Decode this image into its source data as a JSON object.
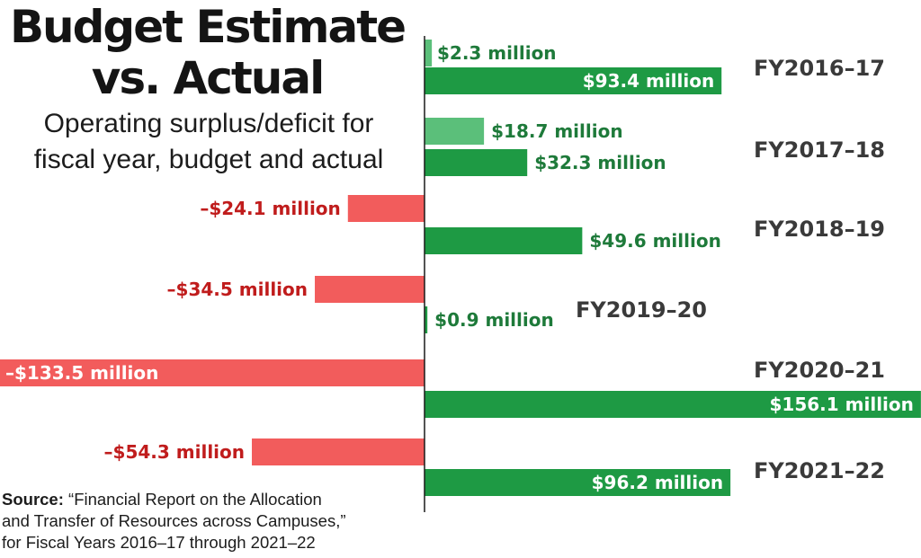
{
  "title_line1": "Budget Estimate",
  "title_line2": "vs. Actual",
  "subtitle_line1": "Operating surplus/deficit for",
  "subtitle_line2": "fiscal year, budget and actual",
  "source": {
    "label": "Source:",
    "line1": "“Financial Report on the Allocation",
    "line2": "and Transfer of Resources across Campuses,”",
    "line3": "for Fiscal Years 2016–17 through 2021–22"
  },
  "colors": {
    "budget_positive": "#5bbf7a",
    "actual_positive": "#1e9a44",
    "budget_negative": "#f25c5c",
    "actual_negative": "#c81414",
    "label_positive": "#1e7a3a",
    "label_negative": "#c01c1c"
  },
  "chart_data": {
    "type": "bar",
    "orientation": "horizontal",
    "units": "million dollars",
    "categories": [
      "FY2016–17",
      "FY2017–18",
      "FY2018–19",
      "FY2019–20",
      "FY2020–21",
      "FY2021–22"
    ],
    "series": [
      {
        "kind": "budget",
        "values": [
          2.3,
          18.7,
          -24.1,
          -34.5,
          -133.5,
          -54.3
        ],
        "labels": [
          "$2.3 million",
          "$18.7 million",
          "–$24.1 million",
          "–$34.5 million",
          "–$133.5 million",
          "–$54.3 million"
        ]
      },
      {
        "kind": "actual",
        "values": [
          93.4,
          32.3,
          49.6,
          0.9,
          156.1,
          96.2
        ],
        "labels": [
          "$93.4 million",
          "$32.3 million",
          "$49.6 million",
          "$0.9 million",
          "$156.1 million",
          "$96.2 million"
        ]
      }
    ],
    "xlim": [
      -133.5,
      156.1
    ],
    "grid": false,
    "legend": "none"
  }
}
